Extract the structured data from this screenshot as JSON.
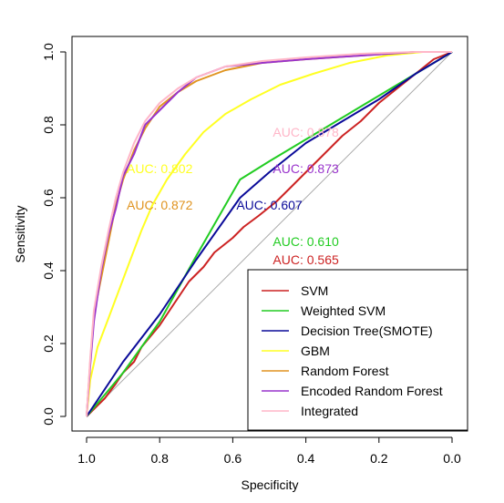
{
  "chart_data": {
    "type": "line",
    "title": "",
    "xlabel": "Specificity",
    "ylabel": "Sensitivity",
    "xlim": [
      1.0,
      0.0
    ],
    "ylim": [
      0.0,
      1.0
    ],
    "x_reversed": true,
    "x_ticks": [
      "1.0",
      "0.8",
      "0.6",
      "0.4",
      "0.2",
      "0.0"
    ],
    "x_tick_values": [
      1.0,
      0.8,
      0.6,
      0.4,
      0.2,
      0.0
    ],
    "y_ticks": [
      "0.0",
      "0.2",
      "0.4",
      "0.6",
      "0.8",
      "1.0"
    ],
    "y_tick_values": [
      0.0,
      0.2,
      0.4,
      0.6,
      0.8,
      1.0
    ],
    "reference_line": {
      "from": [
        1.0,
        0.0
      ],
      "to": [
        0.0,
        1.0
      ],
      "color": "#aaaaaa"
    },
    "legend_position": "bottom-right",
    "series": [
      {
        "name": "SVM",
        "color": "#cc2222",
        "auc_label": "AUC: 0.565",
        "auc_at": [
          0.4,
          0.43
        ],
        "specificity": [
          1.0,
          0.98,
          0.95,
          0.92,
          0.9,
          0.87,
          0.85,
          0.8,
          0.76,
          0.72,
          0.68,
          0.65,
          0.6,
          0.57,
          0.53,
          0.48,
          0.44,
          0.4,
          0.35,
          0.3,
          0.25,
          0.2,
          0.15,
          0.1,
          0.05,
          0.0
        ],
        "sensitivity": [
          0.0,
          0.02,
          0.05,
          0.09,
          0.12,
          0.15,
          0.19,
          0.25,
          0.31,
          0.37,
          0.41,
          0.45,
          0.49,
          0.52,
          0.55,
          0.59,
          0.63,
          0.67,
          0.72,
          0.77,
          0.81,
          0.86,
          0.9,
          0.94,
          0.98,
          1.0
        ]
      },
      {
        "name": "Weighted SVM",
        "color": "#22cc22",
        "auc_label": "AUC: 0.610",
        "auc_at": [
          0.4,
          0.48
        ],
        "specificity": [
          1.0,
          0.9,
          0.8,
          0.7,
          0.58,
          0.5,
          0.4,
          0.3,
          0.2,
          0.1,
          0.0
        ],
        "sensitivity": [
          0.0,
          0.12,
          0.26,
          0.44,
          0.65,
          0.7,
          0.76,
          0.82,
          0.88,
          0.94,
          1.0
        ]
      },
      {
        "name": "Decision Tree(SMOTE)",
        "color": "#0a0a99",
        "auc_label": "AUC: 0.607",
        "auc_at": [
          0.5,
          0.58
        ],
        "specificity": [
          1.0,
          0.9,
          0.8,
          0.7,
          0.58,
          0.5,
          0.4,
          0.3,
          0.2,
          0.1,
          0.0
        ],
        "sensitivity": [
          0.0,
          0.15,
          0.28,
          0.43,
          0.6,
          0.67,
          0.75,
          0.81,
          0.87,
          0.94,
          1.0
        ]
      },
      {
        "name": "GBM",
        "color": "#ffff22",
        "auc_label": "AUC: 0.802",
        "auc_at": [
          0.8,
          0.68
        ],
        "specificity": [
          1.0,
          0.99,
          0.97,
          0.94,
          0.91,
          0.88,
          0.85,
          0.82,
          0.78,
          0.73,
          0.68,
          0.62,
          0.55,
          0.47,
          0.38,
          0.28,
          0.18,
          0.08,
          0.0
        ],
        "sensitivity": [
          0.0,
          0.1,
          0.19,
          0.27,
          0.35,
          0.43,
          0.51,
          0.58,
          0.65,
          0.72,
          0.78,
          0.83,
          0.87,
          0.91,
          0.94,
          0.97,
          0.99,
          1.0,
          1.0
        ]
      },
      {
        "name": "Random Forest",
        "color": "#e09420",
        "auc_label": "AUC: 0.872",
        "auc_at": [
          0.8,
          0.58
        ],
        "specificity": [
          1.0,
          0.99,
          0.98,
          0.96,
          0.94,
          0.92,
          0.9,
          0.87,
          0.84,
          0.8,
          0.75,
          0.7,
          0.62,
          0.52,
          0.4,
          0.25,
          0.1,
          0.0
        ],
        "sensitivity": [
          0.0,
          0.15,
          0.28,
          0.38,
          0.48,
          0.58,
          0.65,
          0.73,
          0.79,
          0.85,
          0.89,
          0.92,
          0.95,
          0.97,
          0.98,
          0.99,
          1.0,
          1.0
        ]
      },
      {
        "name": "Encoded Random Forest",
        "color": "#9933cc",
        "auc_label": "AUC: 0.873",
        "auc_at": [
          0.4,
          0.68
        ],
        "specificity": [
          1.0,
          0.99,
          0.98,
          0.96,
          0.94,
          0.92,
          0.9,
          0.87,
          0.84,
          0.8,
          0.75,
          0.7,
          0.62,
          0.52,
          0.4,
          0.25,
          0.1,
          0.0
        ],
        "sensitivity": [
          0.0,
          0.14,
          0.26,
          0.4,
          0.5,
          0.57,
          0.66,
          0.72,
          0.8,
          0.84,
          0.89,
          0.93,
          0.96,
          0.97,
          0.98,
          0.99,
          1.0,
          1.0
        ]
      },
      {
        "name": "Integrated",
        "color": "#ffb6c8",
        "auc_label": "AUC: 0.878",
        "auc_at": [
          0.4,
          0.78
        ],
        "specificity": [
          1.0,
          0.99,
          0.98,
          0.96,
          0.94,
          0.92,
          0.9,
          0.87,
          0.84,
          0.8,
          0.75,
          0.7,
          0.62,
          0.52,
          0.4,
          0.25,
          0.1,
          0.0
        ],
        "sensitivity": [
          0.0,
          0.16,
          0.29,
          0.41,
          0.51,
          0.6,
          0.67,
          0.75,
          0.81,
          0.86,
          0.9,
          0.93,
          0.96,
          0.975,
          0.985,
          0.995,
          1.0,
          1.0
        ]
      }
    ]
  }
}
